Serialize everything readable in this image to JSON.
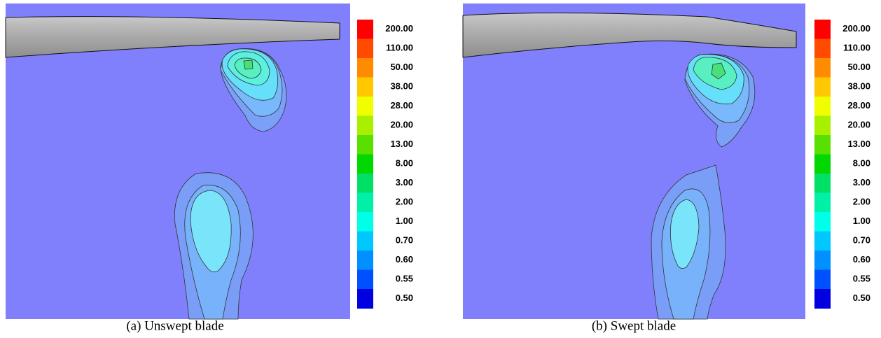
{
  "panels": [
    {
      "caption": "(a) Unswept blade",
      "colorbar": [
        "200.00",
        "110.00",
        "50.00",
        "38.00",
        "28.00",
        "20.00",
        "13.00",
        "8.00",
        "3.00",
        "2.00",
        "1.00",
        "0.70",
        "0.60",
        "0.55",
        "0.50"
      ]
    },
    {
      "caption": "(b) Swept blade",
      "colorbar": [
        "200.00",
        "110.00",
        "50.00",
        "38.00",
        "28.00",
        "20.00",
        "13.00",
        "8.00",
        "3.00",
        "2.00",
        "1.00",
        "0.70",
        "0.60",
        "0.55",
        "0.50"
      ]
    }
  ]
}
